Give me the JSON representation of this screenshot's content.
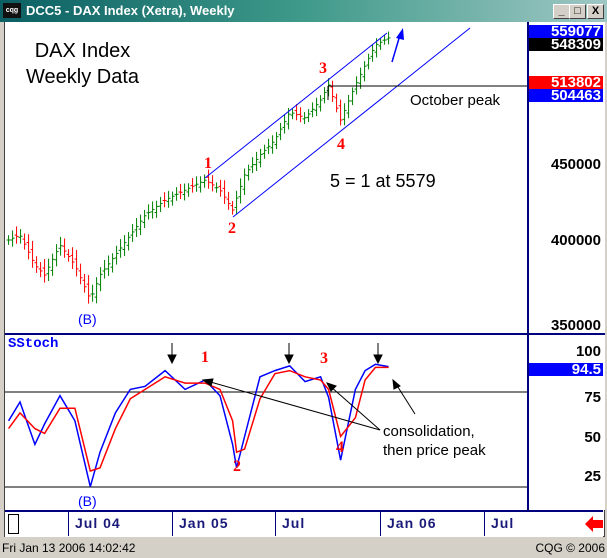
{
  "window": {
    "title": "DCC5 - DAX Index (Xetra), Weekly",
    "logo": "cqg",
    "buttons": [
      "_",
      "□",
      "X"
    ]
  },
  "price_panel": {
    "title_line1": "DAX Index",
    "title_line2": "Weekly Data",
    "annotation_wave": "5 = 1 at 5579",
    "october_peak": "October peak",
    "wave_labels": [
      "1",
      "2",
      "3",
      "4"
    ],
    "low_label": "(B)",
    "axis_labels": [
      "450000",
      "400000",
      "350000"
    ],
    "boxes": [
      {
        "value": "559077",
        "bg": "#0000ff"
      },
      {
        "value": "548309",
        "bg": "#000000"
      },
      {
        "value": "513802",
        "bg": "#ff0000"
      },
      {
        "value": "504463",
        "bg": "#0000ff"
      }
    ]
  },
  "stoch_panel": {
    "title": "SStoch",
    "axis_labels": [
      "100",
      "75",
      "50",
      "25"
    ],
    "current": "94.5",
    "current_bg": "#0000ff",
    "annotation_line1": "consolidation,",
    "annotation_line2": "then price peak",
    "wave_labels": [
      "1",
      "2",
      "3",
      "4"
    ],
    "low_label": "(B)"
  },
  "time_axis": [
    "Jul  04",
    "Jan  05",
    "Jul",
    "Jan  06",
    "Jul"
  ],
  "status": {
    "datetime": "Fri Jan 13 2006 14:02:42",
    "copyright": "CQG © 2006"
  },
  "colors": {
    "up_bar": "#008000",
    "down_bar": "#ff0000",
    "channel": "#0000ff",
    "fast_stoch": "#0000ff",
    "slow_stoch": "#ff0000",
    "wave_label": "#ff0000"
  },
  "chart_data": [
    {
      "type": "ohlc",
      "title": "DAX Index Weekly Data",
      "y_scale": "log",
      "ylim": [
        3500,
        5600
      ],
      "x": [
        "2004-03-19",
        "2004-04-08",
        "2004-05-04",
        "2004-05-21",
        "2004-06-17",
        "2004-07-13",
        "2004-08-09",
        "2004-08-26",
        "2004-09-22",
        "2004-10-18",
        "2004-11-13",
        "2004-12-18",
        "2005-01-22",
        "2005-02-26",
        "2005-03-24",
        "2005-04-15",
        "2005-05-06",
        "2005-06-02",
        "2005-06-28",
        "2005-07-24",
        "2005-08-20",
        "2005-09-16",
        "2005-09-30",
        "2005-10-21",
        "2005-11-16",
        "2005-12-03",
        "2005-12-21",
        "2006-01-13"
      ],
      "close": [
        4006,
        4037,
        3853,
        3794,
        3975,
        3853,
        3651,
        3794,
        3914,
        4037,
        4164,
        4262,
        4329,
        4397,
        4329,
        4197,
        4431,
        4570,
        4678,
        4885,
        4840,
        4977,
        5094,
        4825,
        5094,
        5254,
        5420,
        5480
      ]
    },
    {
      "type": "line",
      "title": "SStoch",
      "ylim": [
        0,
        100
      ],
      "reference_lines": [
        80,
        20
      ],
      "x": [
        "2004-03-19",
        "2004-04-08",
        "2004-05-04",
        "2004-05-21",
        "2004-06-17",
        "2004-07-13",
        "2004-08-09",
        "2004-08-26",
        "2004-09-22",
        "2004-10-18",
        "2004-11-13",
        "2004-12-18",
        "2005-01-22",
        "2005-02-26",
        "2005-03-24",
        "2005-04-15",
        "2005-04-22",
        "2005-05-06",
        "2005-06-02",
        "2005-06-28",
        "2005-07-24",
        "2005-08-20",
        "2005-09-16",
        "2005-09-30",
        "2005-10-21",
        "2005-11-16",
        "2005-12-03",
        "2005-12-21",
        "2006-01-13"
      ],
      "series": [
        {
          "values": [
            60,
            72,
            45,
            58,
            76,
            60,
            18,
            40,
            65,
            80,
            82,
            92,
            80,
            86,
            76,
            45,
            30,
            50,
            88,
            92,
            95,
            85,
            88,
            75,
            35,
            80,
            92,
            96,
            94.5
          ]
        },
        {
          "values": [
            55,
            65,
            55,
            52,
            68,
            68,
            28,
            30,
            55,
            74,
            80,
            88,
            84,
            84,
            80,
            60,
            40,
            42,
            74,
            90,
            92,
            88,
            86,
            80,
            50,
            62,
            86,
            94,
            94
          ]
        }
      ]
    }
  ]
}
